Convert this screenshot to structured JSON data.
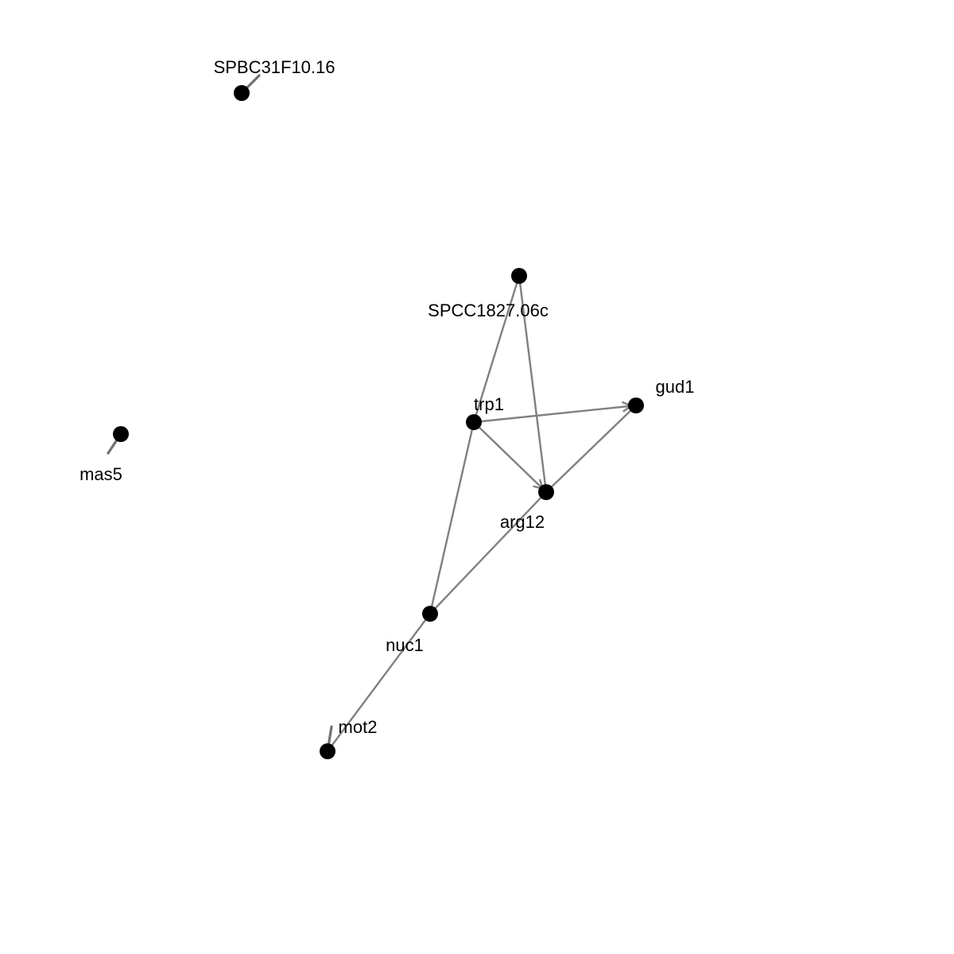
{
  "graph": {
    "nodes": [
      {
        "id": "SPBC31F10.16",
        "label": "SPBC31F10.16"
      },
      {
        "id": "SPCC1827.06c",
        "label": "SPCC1827.06c"
      },
      {
        "id": "gud1",
        "label": "gud1"
      },
      {
        "id": "trp1",
        "label": "trp1"
      },
      {
        "id": "mas5",
        "label": "mas5"
      },
      {
        "id": "arg12",
        "label": "arg12"
      },
      {
        "id": "nuc1",
        "label": "nuc1"
      },
      {
        "id": "mot2",
        "label": "mot2"
      }
    ],
    "edges": [
      {
        "from": "SPCC1827.06c",
        "to": "trp1"
      },
      {
        "from": "SPCC1827.06c",
        "to": "arg12"
      },
      {
        "from": "trp1",
        "to": "gud1",
        "arrow": true
      },
      {
        "from": "trp1",
        "to": "arg12",
        "arrow": true
      },
      {
        "from": "arg12",
        "to": "gud1"
      },
      {
        "from": "trp1",
        "to": "nuc1"
      },
      {
        "from": "arg12",
        "to": "nuc1"
      },
      {
        "from": "nuc1",
        "to": "mot2"
      }
    ],
    "self_loops": [
      "SPBC31F10.16",
      "mas5",
      "mot2"
    ],
    "colors": {
      "node": "#000000",
      "edge": "#808080",
      "label": "#000000"
    }
  }
}
